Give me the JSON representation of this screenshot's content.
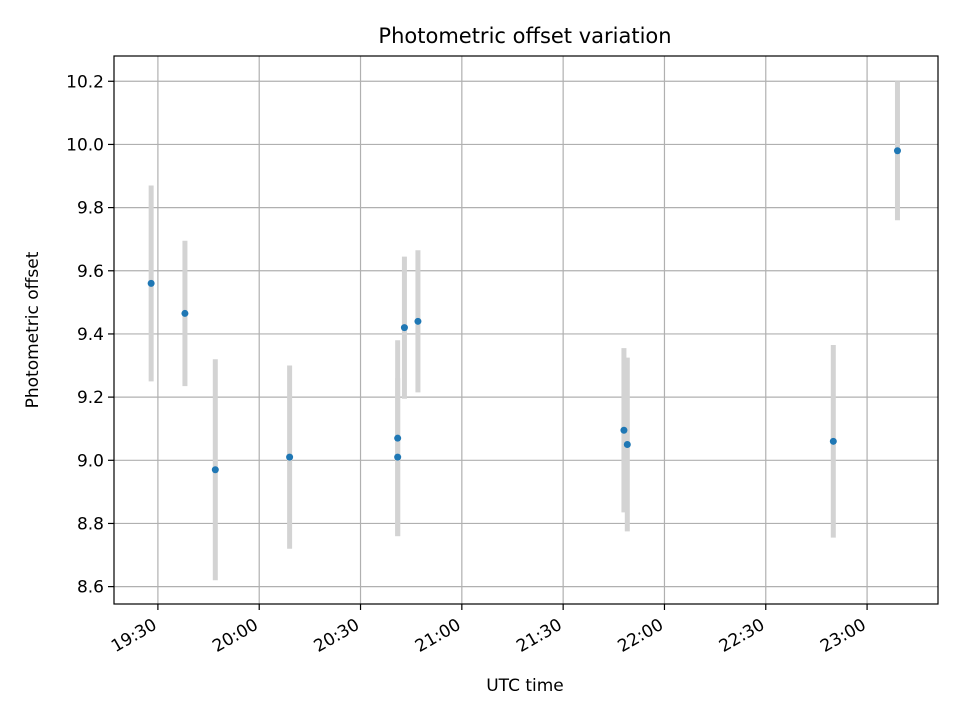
{
  "chart_data": {
    "type": "scatter",
    "title": "Photometric offset variation",
    "xlabel": "UTC time",
    "ylabel": "Photometric offset",
    "grid": true,
    "xlim": [
      "19:17",
      "23:21"
    ],
    "ylim": [
      8.545,
      10.28
    ],
    "x_ticks": [
      "19:30",
      "20:00",
      "20:30",
      "21:00",
      "21:30",
      "22:00",
      "22:30",
      "23:00"
    ],
    "y_ticks": [
      8.6,
      8.8,
      9.0,
      9.2,
      9.4,
      9.6,
      9.8,
      10.0,
      10.2
    ],
    "y_tick_labels": [
      "8.6",
      "8.8",
      "9.0",
      "9.2",
      "9.4",
      "9.6",
      "9.8",
      "10.0",
      "10.2"
    ],
    "point_color": "#1f77b4",
    "errorbar_color": "#d3d3d3",
    "points": [
      {
        "x": "19:28",
        "y": 9.56,
        "err": 0.31
      },
      {
        "x": "19:38",
        "y": 9.465,
        "err": 0.23
      },
      {
        "x": "19:47",
        "y": 8.97,
        "err": 0.35
      },
      {
        "x": "20:09",
        "y": 9.01,
        "err": 0.29
      },
      {
        "x": "20:41",
        "y": 9.07,
        "err": 0.31
      },
      {
        "x": "20:41",
        "y": 9.01,
        "err": 0.25
      },
      {
        "x": "20:43",
        "y": 9.42,
        "err": 0.225
      },
      {
        "x": "20:47",
        "y": 9.44,
        "err": 0.225
      },
      {
        "x": "21:48",
        "y": 9.095,
        "err": 0.26
      },
      {
        "x": "21:49",
        "y": 9.05,
        "err": 0.275
      },
      {
        "x": "22:50",
        "y": 9.06,
        "err": 0.305
      },
      {
        "x": "23:09",
        "y": 9.98,
        "err": 0.22
      }
    ]
  }
}
